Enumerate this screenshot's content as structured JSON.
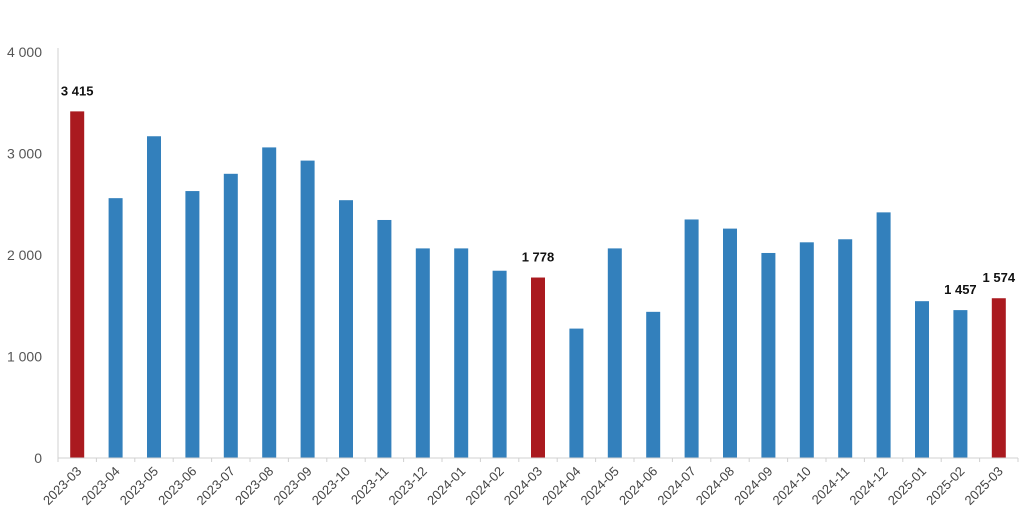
{
  "chart_data": {
    "type": "bar",
    "categories": [
      "2023-03",
      "2023-04",
      "2023-05",
      "2023-06",
      "2023-07",
      "2023-08",
      "2023-09",
      "2023-10",
      "2023-11",
      "2023-12",
      "2024-01",
      "2024-02",
      "2024-03",
      "2024-04",
      "2024-05",
      "2024-06",
      "2024-07",
      "2024-08",
      "2024-09",
      "2024-10",
      "2024-11",
      "2024-12",
      "2025-01",
      "2025-02",
      "2025-03"
    ],
    "values": [
      3415,
      2560,
      3170,
      2630,
      2800,
      3060,
      2930,
      2540,
      2345,
      2065,
      2065,
      1845,
      1778,
      1275,
      2065,
      1440,
      2350,
      2260,
      2020,
      2125,
      2155,
      2420,
      1545,
      1457,
      1574
    ],
    "highlighted": [
      0,
      12,
      24
    ],
    "data_labels": [
      {
        "index": 0,
        "text": "3 415"
      },
      {
        "index": 12,
        "text": "1 778"
      },
      {
        "index": 23,
        "text": "1 457"
      },
      {
        "index": 24,
        "text": "1 574"
      }
    ],
    "yticks": [
      {
        "value": 0,
        "label": "0"
      },
      {
        "value": 1000,
        "label": "1 000"
      },
      {
        "value": 2000,
        "label": "2 000"
      },
      {
        "value": 3000,
        "label": "3 000"
      },
      {
        "value": 4000,
        "label": "4 000"
      }
    ],
    "ylim": [
      0,
      4000
    ],
    "title": "",
    "xlabel": "",
    "ylabel": "",
    "grid": false,
    "colors": {
      "bar": "#3380BC",
      "highlight": "#AA1A1F",
      "axis": "#D0D0D0"
    }
  }
}
